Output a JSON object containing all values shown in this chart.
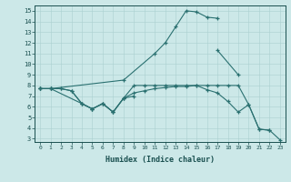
{
  "xlabel": "Humidex (Indice chaleur)",
  "bg_color": "#cce8e8",
  "line_color": "#2a7070",
  "grid_color": "#aad0d0",
  "text_color": "#1a5050",
  "xlim": [
    -0.5,
    23.5
  ],
  "ylim": [
    2.7,
    15.5
  ],
  "xticks": [
    0,
    1,
    2,
    3,
    4,
    5,
    6,
    7,
    8,
    9,
    10,
    11,
    12,
    13,
    14,
    15,
    16,
    17,
    18,
    19,
    20,
    21,
    22,
    23
  ],
  "yticks": [
    3,
    4,
    5,
    6,
    7,
    8,
    9,
    10,
    11,
    12,
    13,
    14,
    15
  ],
  "lines": [
    {
      "x": [
        0,
        1,
        8,
        11,
        12,
        13,
        14,
        15,
        16,
        17
      ],
      "y": [
        7.7,
        7.7,
        8.5,
        11.0,
        12.0,
        13.5,
        15.0,
        14.9,
        14.4,
        14.3
      ]
    },
    {
      "segments": [
        {
          "x": [
            0,
            1,
            4,
            5,
            6,
            7,
            8,
            9
          ],
          "y": [
            7.7,
            7.7,
            6.3,
            5.8,
            6.3,
            5.5,
            6.8,
            7.0
          ]
        },
        {
          "x": [
            17,
            19
          ],
          "y": [
            11.3,
            9.0
          ]
        }
      ]
    },
    {
      "x": [
        0,
        1,
        2,
        3,
        4,
        5,
        6,
        7,
        8,
        9,
        10,
        11,
        12,
        13,
        14,
        15,
        16,
        17,
        18,
        19,
        20,
        21,
        22
      ],
      "y": [
        7.7,
        7.7,
        7.7,
        7.5,
        6.3,
        5.8,
        6.3,
        5.5,
        6.8,
        8.0,
        8.0,
        8.0,
        8.0,
        8.0,
        8.0,
        8.0,
        8.0,
        8.0,
        8.0,
        8.0,
        6.2,
        3.9,
        3.8
      ]
    },
    {
      "x": [
        0,
        1,
        2,
        3,
        4,
        5,
        6,
        7,
        8,
        9,
        10,
        11,
        12,
        13,
        14,
        15,
        16,
        17,
        18,
        19,
        20,
        21,
        22,
        23
      ],
      "y": [
        7.7,
        7.7,
        7.7,
        7.5,
        6.3,
        5.8,
        6.3,
        5.5,
        6.8,
        7.3,
        7.5,
        7.7,
        7.8,
        7.9,
        7.9,
        8.0,
        7.6,
        7.3,
        6.5,
        5.5,
        6.2,
        3.9,
        3.8,
        2.9
      ]
    }
  ]
}
